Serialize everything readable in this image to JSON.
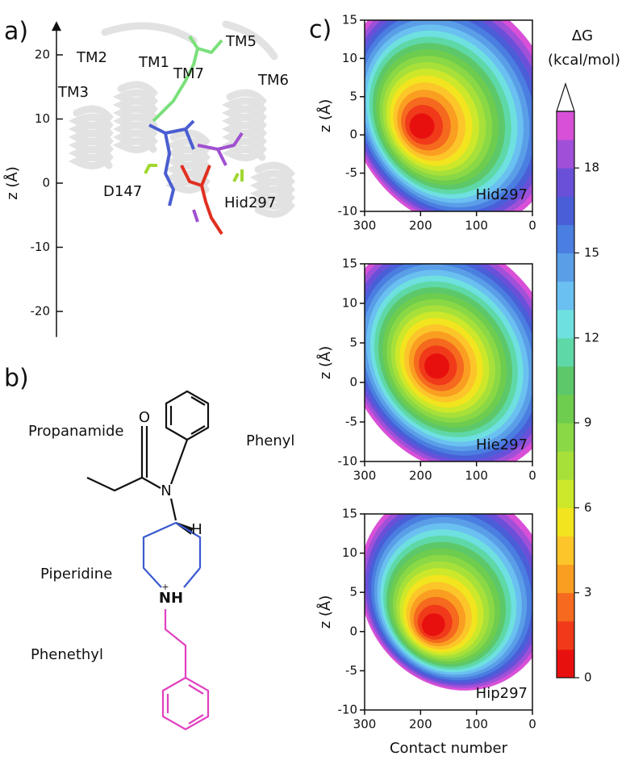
{
  "panel_a": {
    "label": "a)",
    "ylabel": "z (Å)",
    "ylim": [
      -24,
      25
    ],
    "yticks": [
      20,
      10,
      0,
      -10,
      -20
    ],
    "annotations": [
      {
        "text": "TM2",
        "color": "#111111"
      },
      {
        "text": "TM1",
        "color": "#777777"
      },
      {
        "text": "TM5",
        "color": "#111111"
      },
      {
        "text": "TM7",
        "color": "#777777"
      },
      {
        "text": "TM6",
        "color": "#111111"
      },
      {
        "text": "TM3",
        "color": "#111111"
      },
      {
        "text": "D147",
        "color": "#e02020"
      },
      {
        "text": "Hid297",
        "color": "#4060d0"
      }
    ]
  },
  "panel_b": {
    "label": "b)",
    "groups": [
      {
        "text": "Propanamide",
        "color": "#111111"
      },
      {
        "text": "Phenyl",
        "color": "#111111"
      },
      {
        "text": "Piperidine",
        "color": "#3a5ad0"
      },
      {
        "text": "Phenethyl",
        "color": "#e040c0"
      }
    ],
    "atoms": {
      "O": "O",
      "N": "N",
      "H": "H",
      "NH": "NH",
      "charge": "+"
    }
  },
  "panel_c": {
    "label": "c)",
    "xlabel": "Contact number",
    "ylabel": "z (Å)",
    "xlim": [
      300,
      0
    ],
    "ylim": [
      -10,
      15
    ],
    "xticks": [
      300,
      200,
      100,
      0
    ],
    "yticks": [
      -10,
      -5,
      0,
      5,
      10,
      15
    ],
    "plots": [
      {
        "name": "Hid297"
      },
      {
        "name": "Hie297"
      },
      {
        "name": "Hip297"
      }
    ],
    "colorbar": {
      "title": "ΔG",
      "unit": "(kcal/mol)",
      "clim": [
        0,
        20
      ],
      "ticks": [
        0,
        3,
        6,
        9,
        12,
        15,
        18
      ],
      "colors": [
        "#e8100f",
        "#f03a1a",
        "#f56a1e",
        "#fa9e22",
        "#fcc52a",
        "#f2e41e",
        "#cde82a",
        "#a8e03a",
        "#8ad845",
        "#6ecc4e",
        "#5cc86a",
        "#5fd8a8",
        "#6ee0e0",
        "#6ac0f0",
        "#5a9ee8",
        "#4a7ee0",
        "#4a5ed8",
        "#6a50d8",
        "#a050d8",
        "#d850d8"
      ]
    }
  }
}
